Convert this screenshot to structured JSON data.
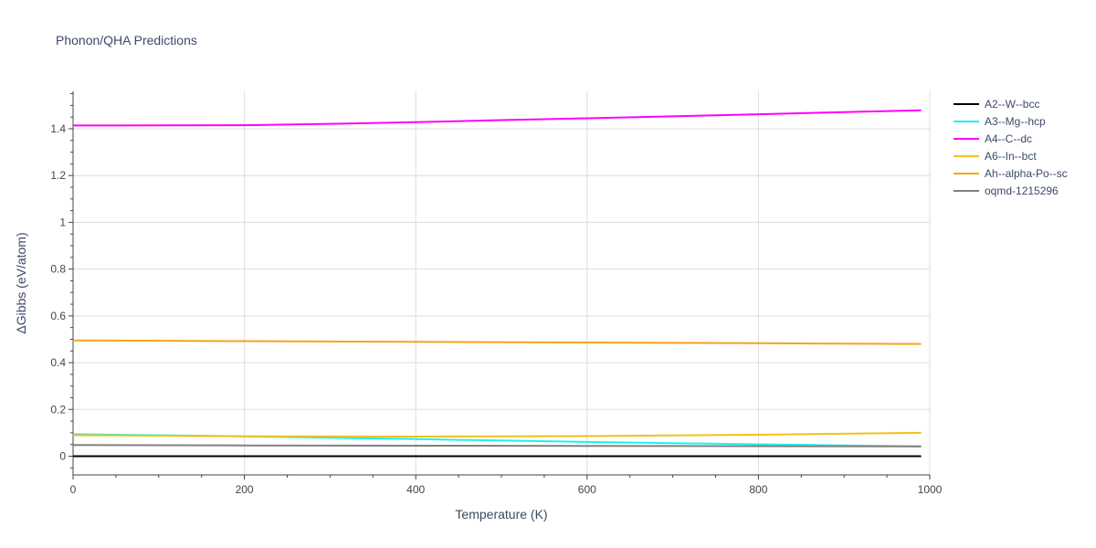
{
  "chart_data": {
    "type": "line",
    "title": "Phonon/QHA Predictions",
    "xlabel": "Temperature (K)",
    "ylabel": "ΔGibbs (eV/atom)",
    "xlim": [
      0,
      1000
    ],
    "ylim": [
      -0.08,
      1.56
    ],
    "xticks": [
      0,
      200,
      400,
      600,
      800,
      1000
    ],
    "xtick_labels": [
      "0",
      "200",
      "400",
      "600",
      "800",
      "1000"
    ],
    "yticks": [
      0,
      0.2,
      0.4,
      0.6,
      0.8,
      1,
      1.2,
      1.4
    ],
    "ytick_labels": [
      "0",
      "0.2",
      "0.4",
      "0.6",
      "0.8",
      "1",
      "1.2",
      "1.4"
    ],
    "grid": true,
    "legend_position": "right",
    "series": [
      {
        "name": "A2--W--bcc",
        "color": "#000000",
        "x": [
          0,
          200,
          400,
          600,
          800,
          990
        ],
        "y": [
          0,
          0,
          0,
          0,
          0,
          0
        ]
      },
      {
        "name": "A3--Mg--hcp",
        "color": "#1ef0f0",
        "x": [
          0,
          200,
          400,
          600,
          800,
          990
        ],
        "y": [
          0.094,
          0.085,
          0.073,
          0.061,
          0.051,
          0.042
        ]
      },
      {
        "name": "A4--C--dc",
        "color": "#ff00ff",
        "x": [
          0,
          200,
          300,
          400,
          500,
          600,
          700,
          800,
          900,
          990
        ],
        "y": [
          1.414,
          1.415,
          1.421,
          1.428,
          1.437,
          1.445,
          1.453,
          1.462,
          1.471,
          1.479
        ]
      },
      {
        "name": "A6--In--bct",
        "color": "#f2c01a",
        "x": [
          0,
          200,
          400,
          600,
          800,
          990
        ],
        "y": [
          0.09,
          0.085,
          0.084,
          0.086,
          0.092,
          0.1
        ]
      },
      {
        "name": "Ah--alpha-Po--sc",
        "color": "#f5a31a",
        "x": [
          0,
          200,
          400,
          600,
          800,
          990
        ],
        "y": [
          0.495,
          0.492,
          0.489,
          0.486,
          0.483,
          0.48
        ]
      },
      {
        "name": "oqmd-1215296",
        "color": "#808080",
        "x": [
          0,
          200,
          400,
          600,
          800,
          990
        ],
        "y": [
          0.048,
          0.046,
          0.045,
          0.044,
          0.043,
          0.042
        ]
      }
    ]
  }
}
